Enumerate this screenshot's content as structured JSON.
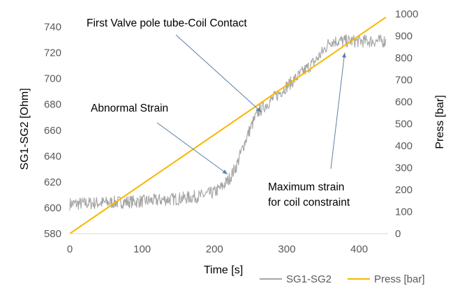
{
  "chart_data": {
    "type": "line",
    "xlabel": "Time [s]",
    "ylabel": "SG1-SG2 [Ohm]",
    "y2label": "Press [bar]",
    "xlim": [
      0,
      440
    ],
    "ylim": [
      580,
      750
    ],
    "y2lim": [
      0,
      1000
    ],
    "x_ticks": [
      "0",
      "100",
      "200",
      "300",
      "400"
    ],
    "y_ticks": [
      "580",
      "600",
      "620",
      "640",
      "660",
      "680",
      "700",
      "720",
      "740"
    ],
    "y2_ticks": [
      "0",
      "100",
      "200",
      "300",
      "400",
      "500",
      "600",
      "700",
      "800",
      "900",
      "1000"
    ],
    "grid": false,
    "legend_position": "bottom-right",
    "series": [
      {
        "name": "SG1-SG2",
        "axis": "left",
        "color": "#a5a5a5",
        "noise": 5,
        "x": [
          0,
          50,
          100,
          150,
          180,
          200,
          210,
          220,
          230,
          240,
          250,
          260,
          270,
          280,
          290,
          300,
          310,
          320,
          330,
          340,
          350,
          360,
          380,
          400,
          437
        ],
        "y": [
          603,
          604,
          605,
          607,
          609,
          612,
          616,
          622,
          632,
          648,
          662,
          674,
          679,
          684,
          689,
          694,
          699,
          704,
          709,
          714,
          721,
          729,
          729,
          729,
          729
        ]
      },
      {
        "name": "Press [bar]",
        "axis": "right",
        "color": "#f5b800",
        "x": [
          0,
          437
        ],
        "y": [
          0,
          985
        ]
      }
    ],
    "annotations": [
      {
        "text": "First Valve pole tube-Coil Contact",
        "lines": [
          "First Valve pole tube-Coil Contact"
        ],
        "target": [
          265,
          674
        ]
      },
      {
        "text": "Abnormal Strain",
        "lines": [
          "Abnormal Strain"
        ],
        "target": [
          218,
          626
        ]
      },
      {
        "text": "Maximum strain for coil constraint",
        "lines": [
          "Maximum strain",
          "for coil constraint"
        ],
        "target": [
          380,
          720
        ]
      }
    ]
  }
}
